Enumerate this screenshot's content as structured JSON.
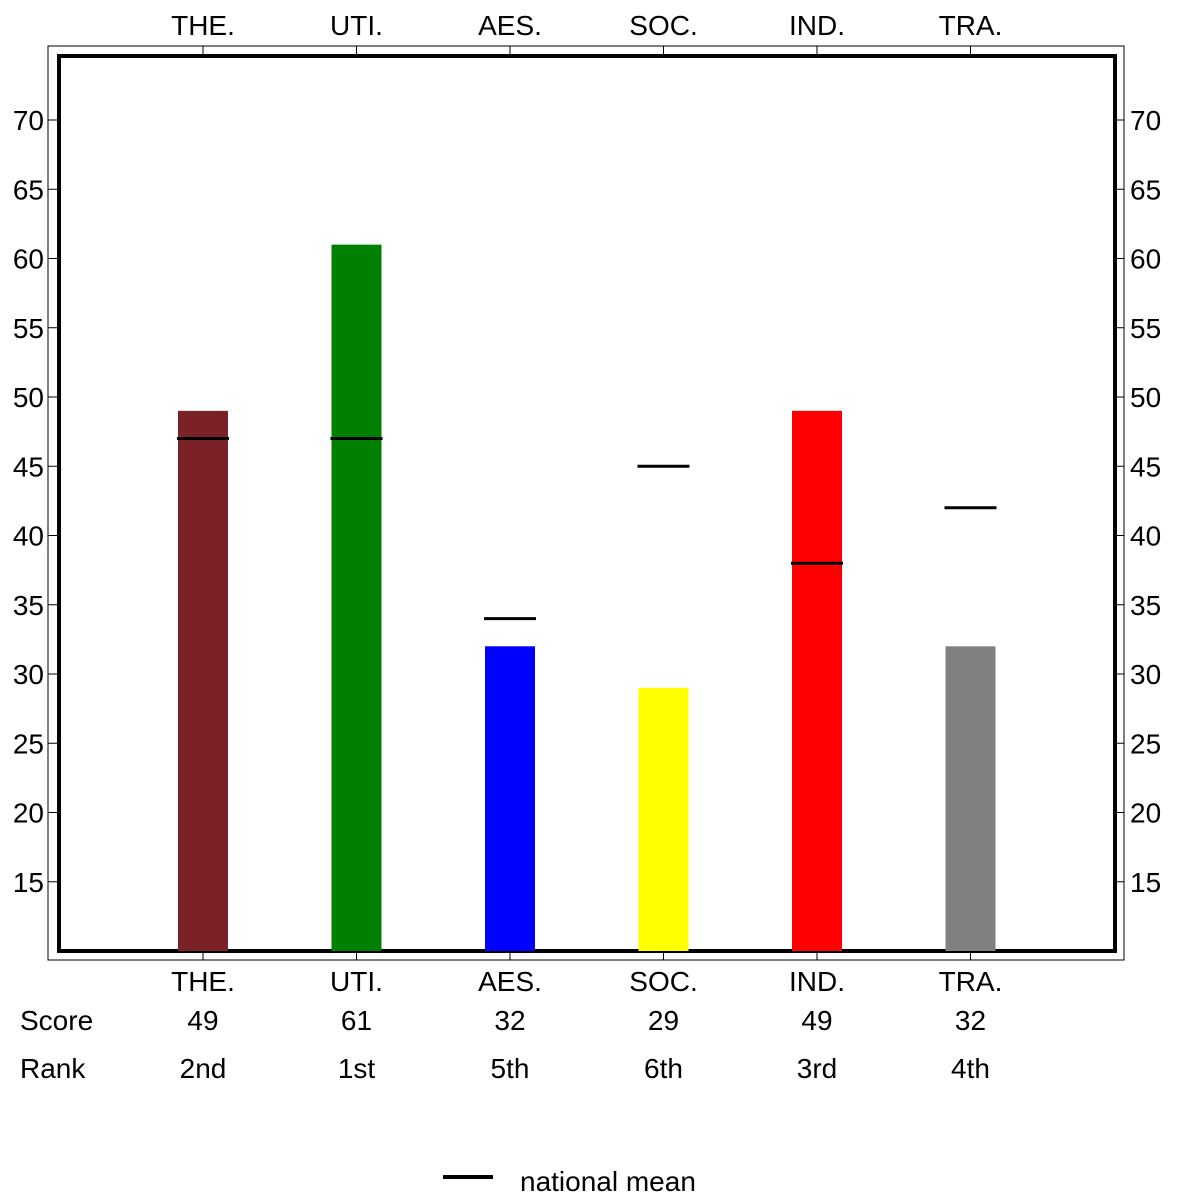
{
  "chart_data": {
    "type": "bar",
    "title": "",
    "xlabel": "",
    "ylabel": "",
    "categories": [
      "THE.",
      "UTI.",
      "AES.",
      "SOC.",
      "IND.",
      "TRA."
    ],
    "values": [
      49,
      61,
      32,
      29,
      49,
      32
    ],
    "bar_colors": [
      "#7b2128",
      "#008000",
      "#0000ff",
      "#ffff00",
      "#ff0000",
      "#808080"
    ],
    "national_mean": [
      47,
      47,
      34,
      45,
      38,
      42
    ],
    "score_row_label": "Score",
    "scores": [
      "49",
      "61",
      "32",
      "29",
      "49",
      "32"
    ],
    "rank_row_label": "Rank",
    "ranks": [
      "2nd",
      "1st",
      "5th",
      "6th",
      "3rd",
      "4th"
    ],
    "ylim": [
      10,
      75
    ],
    "yticks": [
      15,
      20,
      25,
      30,
      35,
      40,
      45,
      50,
      55,
      60,
      65,
      70
    ],
    "legend": {
      "label": "national mean",
      "position": "bottom-center"
    },
    "grid": false
  }
}
